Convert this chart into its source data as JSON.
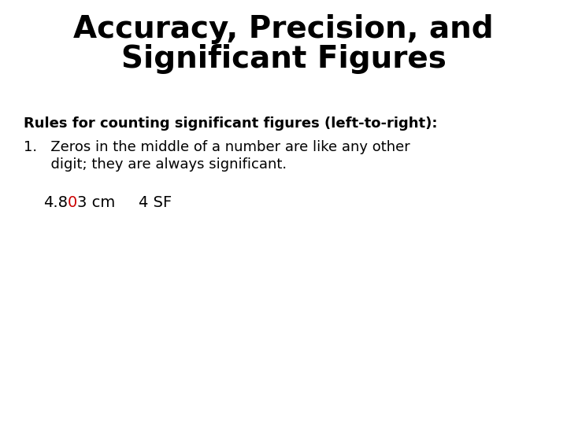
{
  "title_line1": "Accuracy, Precision, and",
  "title_line2": "Significant Figures",
  "title_fontsize": 28,
  "subtitle": "Rules for counting significant figures (left-to-right):",
  "subtitle_fontsize": 13,
  "rule1_line1": "1.   Zeros in the middle of a number are like any other",
  "rule1_line2": "      digit; they are always significant.",
  "rule_fontsize": 13,
  "example_prefix": "4.8",
  "example_highlight": "0",
  "example_suffix": "3 cm",
  "example_sf": "4 SF",
  "example_fontsize": 14,
  "highlight_color": "#cc0000",
  "text_color": "#000000",
  "background_color": "#ffffff",
  "fig_width": 7.2,
  "fig_height": 5.4
}
